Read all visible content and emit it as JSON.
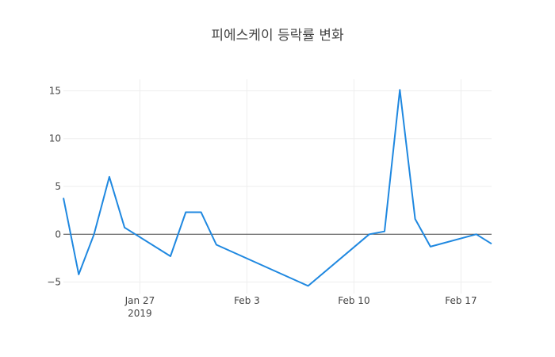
{
  "chart_data": {
    "type": "line",
    "title": "피에스케이 등락률 변화",
    "xlabel": "",
    "ylabel": "",
    "grid": true,
    "legend": "none",
    "x_type": "date",
    "xlim": [
      "2019-01-22",
      "2019-02-19"
    ],
    "ylim": [
      -6.2,
      16.2
    ],
    "x_ticks": [
      {
        "value": "2019-01-27",
        "label": "Jan 27",
        "sublabel": "2019"
      },
      {
        "value": "2019-02-03",
        "label": "Feb 3",
        "sublabel": ""
      },
      {
        "value": "2019-02-10",
        "label": "Feb 10",
        "sublabel": ""
      },
      {
        "value": "2019-02-17",
        "label": "Feb 17",
        "sublabel": ""
      }
    ],
    "y_ticks": [
      -5,
      0,
      5,
      10,
      15
    ],
    "y_tick_labels": [
      "−5",
      "0",
      "5",
      "10",
      "15"
    ],
    "series": [
      {
        "color": "#1f88e0",
        "x": [
          "2019-01-22",
          "2019-01-23",
          "2019-01-24",
          "2019-01-25",
          "2019-01-26",
          "2019-01-29",
          "2019-01-30",
          "2019-01-31",
          "2019-02-01",
          "2019-02-07",
          "2019-02-11",
          "2019-02-12",
          "2019-02-13",
          "2019-02-14",
          "2019-02-15",
          "2019-02-18",
          "2019-02-19"
        ],
        "y": [
          3.8,
          -4.2,
          0.0,
          6.0,
          0.7,
          -2.3,
          2.3,
          2.3,
          -1.1,
          -5.4,
          0.0,
          0.3,
          15.1,
          1.6,
          -1.3,
          0.0,
          -1.0
        ]
      }
    ]
  }
}
